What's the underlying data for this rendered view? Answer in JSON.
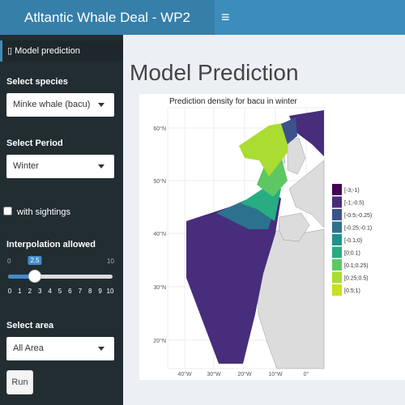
{
  "header": {
    "title": "Atltantic Whale Deal - WP2",
    "menu_icon": "≡"
  },
  "sidebar": {
    "menu_item": "Model prediction",
    "species": {
      "label": "Select species",
      "selected": "Minke whale (bacu)"
    },
    "period": {
      "label": "Select Period",
      "selected": "Winter"
    },
    "sightings": {
      "label": "with sightings",
      "checked": false
    },
    "interpolation": {
      "label": "Interpolation allowed",
      "min": 0,
      "max": 10,
      "value": 2.5,
      "ticks": [
        0,
        1,
        2,
        3,
        4,
        5,
        6,
        7,
        8,
        9,
        10
      ]
    },
    "area": {
      "label": "Select area",
      "selected": "All Area"
    },
    "run_button": "Run"
  },
  "main": {
    "title": "Model Prediction",
    "plot": {
      "title": "Prediction density for bacu in winter",
      "lat_labels": [
        "60°N",
        "50°N",
        "40°N",
        "30°N",
        "20°N"
      ],
      "lon_labels": [
        "40°W",
        "30°W",
        "20°W",
        "10°W",
        "0°"
      ],
      "legend": [
        {
          "label": "[-3;-1)",
          "color": "#440154"
        },
        {
          "label": "[-1;-0.5)",
          "color": "#472d7b"
        },
        {
          "label": "[-0.5;-0.25)",
          "color": "#3b528b"
        },
        {
          "label": "[-0.25;-0.1)",
          "color": "#2c728e"
        },
        {
          "label": "[-0.1;0)",
          "color": "#21908c"
        },
        {
          "label": "[0;0.1)",
          "color": "#27ad81"
        },
        {
          "label": "[0.1;0.25)",
          "color": "#5dc863"
        },
        {
          "label": "[0.25;0.5)",
          "color": "#aadc32"
        },
        {
          "label": "[0.5;1)",
          "color": "#c8e020"
        }
      ]
    }
  }
}
